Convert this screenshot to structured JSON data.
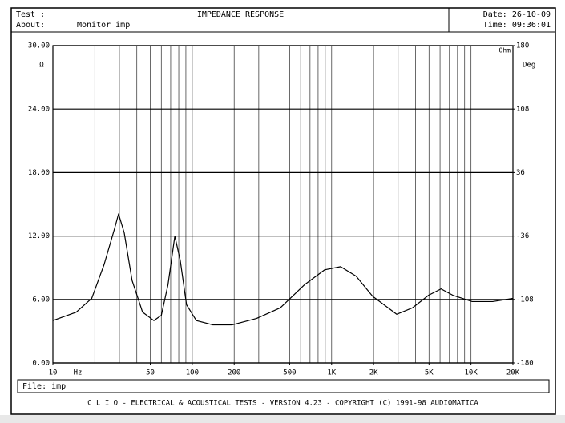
{
  "header": {
    "test_label": "Test :",
    "about_label": "About:",
    "about": "Monitor imp",
    "date": "Date: 26-10-09",
    "time": "Time: 09:36:01"
  },
  "chart_data": {
    "type": "line",
    "title": "IMPEDANCE RESPONSE",
    "log_x": true,
    "x_unit": "Hz",
    "y_unit": "Ω",
    "y2_unit": "Deg",
    "legend_label": "Ohm",
    "xlim": [
      10,
      20000
    ],
    "ylim": [
      0,
      30
    ],
    "y2lim": [
      -180,
      180
    ],
    "xticks": [
      10,
      50,
      100,
      200,
      500,
      {
        "value": 1000,
        "label": "1K"
      },
      {
        "value": 2000,
        "label": "2K"
      },
      {
        "value": 5000,
        "label": "5K"
      },
      {
        "value": 10000,
        "label": "10K"
      },
      {
        "value": 20000,
        "label": "20K"
      }
    ],
    "xgrid": [
      20,
      30,
      40,
      50,
      60,
      70,
      80,
      90,
      100,
      200,
      300,
      400,
      500,
      600,
      700,
      800,
      900,
      1000,
      2000,
      3000,
      4000,
      5000,
      6000,
      7000,
      8000,
      9000,
      10000
    ],
    "yticks": [
      {
        "value": 30,
        "label": "30.00"
      },
      {
        "value": 24,
        "label": "24.00"
      },
      {
        "value": 18,
        "label": "18.00"
      },
      {
        "value": 12,
        "label": "12.00"
      },
      {
        "value": 6,
        "label": "6.00"
      },
      {
        "value": 0,
        "label": "0.00"
      }
    ],
    "y2ticks": [
      180,
      108,
      36,
      -36,
      -108,
      -180
    ],
    "grid": true,
    "x": [
      10,
      14.7,
      19,
      23.3,
      27.7,
      29.6,
      32.5,
      37,
      44,
      53,
      60,
      67,
      75,
      82,
      91,
      107,
      140,
      194,
      289,
      428,
      640,
      890,
      1160,
      1500,
      1970,
      2930,
      3800,
      4970,
      6100,
      7400,
      10200,
      14300,
      20000
    ],
    "series": [
      {
        "name": "Ohm",
        "color": "#000000",
        "values": [
          4.0,
          4.8,
          6.1,
          9.3,
          12.7,
          14.1,
          12.3,
          7.8,
          4.8,
          4.0,
          4.5,
          7.4,
          12.0,
          9.7,
          5.5,
          4.0,
          3.6,
          3.6,
          4.2,
          5.2,
          7.4,
          8.8,
          9.1,
          8.2,
          6.3,
          4.6,
          5.2,
          6.4,
          7.0,
          6.4,
          5.8,
          5.8,
          6.1
        ]
      }
    ]
  },
  "footer": {
    "file": "File: imp",
    "credits": "C L I O  -  ELECTRICAL & ACOUSTICAL TESTS  -  VERSION 4.23  -  COPYRIGHT (C) 1991-98 AUDIOMATICA"
  }
}
